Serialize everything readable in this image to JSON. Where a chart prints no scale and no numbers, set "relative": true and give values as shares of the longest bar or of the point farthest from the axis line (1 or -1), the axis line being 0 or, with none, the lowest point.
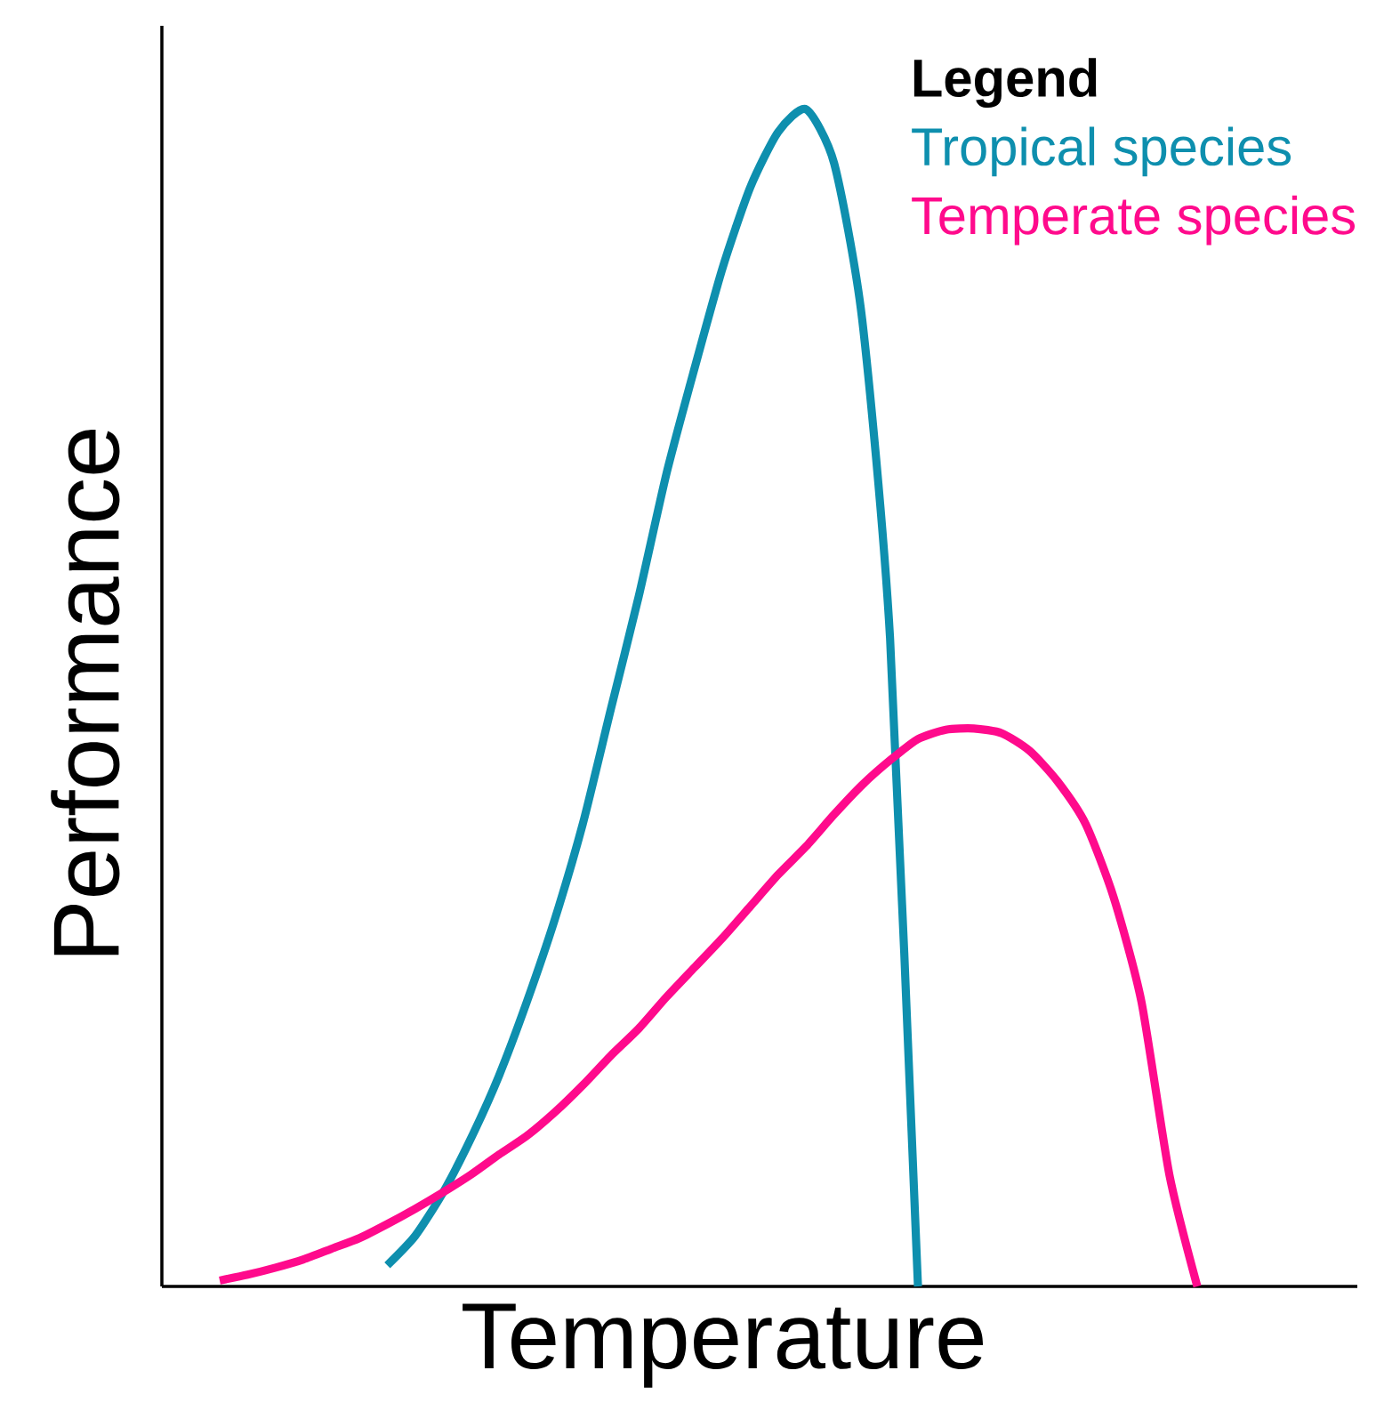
{
  "chart_data": {
    "type": "line",
    "relative": true,
    "xlabel": "Temperature",
    "ylabel": "Performance",
    "legend_title": "Legend",
    "legend": "top right",
    "marker": "none",
    "line_style": "solid",
    "categories": [
      null,
      null,
      null,
      null,
      null,
      null,
      null,
      null,
      null,
      null,
      null,
      null,
      null,
      null,
      null,
      null,
      null,
      null,
      null,
      null,
      null,
      null,
      null,
      null,
      null,
      null,
      null,
      null,
      null,
      null,
      null,
      null,
      null,
      null,
      null,
      null
    ],
    "series": [
      {
        "name": "Tropical species",
        "color": "#0e8fae",
        "values": [
          null,
          null,
          null,
          null,
          null,
          null,
          0.018,
          0.043,
          0.08,
          0.126,
          0.179,
          0.242,
          0.312,
          0.393,
          0.49,
          0.586,
          0.691,
          0.78,
          0.865,
          0.934,
          0.981,
          1.0,
          0.954,
          0.822,
          0.551,
          0.0,
          null,
          null,
          null,
          null,
          null,
          null,
          null,
          null,
          null,
          null
        ]
      },
      {
        "name": "Temperate species",
        "color": "#ff0a8c",
        "values": [
          0.005,
          0.01,
          0.016,
          0.023,
          0.032,
          0.041,
          0.053,
          0.066,
          0.08,
          0.095,
          0.112,
          0.128,
          0.148,
          0.171,
          0.196,
          0.219,
          0.246,
          0.271,
          0.296,
          0.323,
          0.35,
          0.374,
          0.401,
          0.426,
          0.447,
          0.465,
          0.473,
          0.474,
          0.47,
          0.455,
          0.429,
          0.393,
          0.331,
          0.242,
          0.095,
          0.0
        ]
      }
    ]
  }
}
